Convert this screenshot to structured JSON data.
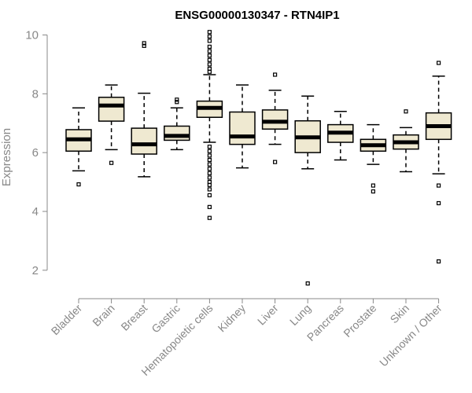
{
  "chart_data": {
    "type": "box",
    "title": "ENSG00000130347 - RTN4IP1",
    "xlabel": "",
    "ylabel": "Expression",
    "ylim": [
      1.3,
      10.2
    ],
    "yticks": [
      2,
      4,
      6,
      8,
      10
    ],
    "box_fill": "#efe9d1",
    "categories": [
      "Bladder",
      "Brain",
      "Breast",
      "Gastric",
      "Hematopoietic cells",
      "Kidney",
      "Liver",
      "Lung",
      "Pancreas",
      "Prostate",
      "Skin",
      "Unknown / Other"
    ],
    "boxes": [
      {
        "whisker_low": 5.38,
        "q1": 6.05,
        "median": 6.45,
        "q3": 6.78,
        "whisker_high": 7.52,
        "outliers": [
          4.92
        ]
      },
      {
        "whisker_low": 6.1,
        "q1": 7.07,
        "median": 7.6,
        "q3": 7.88,
        "whisker_high": 8.3,
        "outliers": [
          5.65
        ]
      },
      {
        "whisker_low": 5.18,
        "q1": 5.95,
        "median": 6.28,
        "q3": 6.83,
        "whisker_high": 8.02,
        "outliers": [
          9.63,
          9.72
        ]
      },
      {
        "whisker_low": 6.1,
        "q1": 6.42,
        "median": 6.57,
        "q3": 6.9,
        "whisker_high": 7.52,
        "outliers": [
          7.72,
          7.8
        ]
      },
      {
        "whisker_low": 6.35,
        "q1": 7.2,
        "median": 7.52,
        "q3": 7.75,
        "whisker_high": 8.65,
        "outliers": [
          10.1,
          9.95,
          9.8,
          9.6,
          9.45,
          9.3,
          9.15,
          9.0,
          8.85,
          8.75,
          6.2,
          6.05,
          5.9,
          5.75,
          5.6,
          5.45,
          5.3,
          5.15,
          5.0,
          4.9,
          4.75,
          4.55,
          4.15,
          3.78
        ]
      },
      {
        "whisker_low": 5.48,
        "q1": 6.28,
        "median": 6.55,
        "q3": 7.38,
        "whisker_high": 8.3,
        "outliers": []
      },
      {
        "whisker_low": 6.28,
        "q1": 6.8,
        "median": 7.05,
        "q3": 7.45,
        "whisker_high": 8.12,
        "outliers": [
          8.65,
          5.68
        ]
      },
      {
        "whisker_low": 5.45,
        "q1": 6.0,
        "median": 6.52,
        "q3": 7.08,
        "whisker_high": 7.92,
        "outliers": [
          1.55
        ]
      },
      {
        "whisker_low": 5.75,
        "q1": 6.35,
        "median": 6.68,
        "q3": 6.95,
        "whisker_high": 7.4,
        "outliers": []
      },
      {
        "whisker_low": 5.6,
        "q1": 6.05,
        "median": 6.25,
        "q3": 6.45,
        "whisker_high": 6.95,
        "outliers": [
          4.88,
          4.68
        ]
      },
      {
        "whisker_low": 5.35,
        "q1": 6.12,
        "median": 6.35,
        "q3": 6.6,
        "whisker_high": 6.85,
        "outliers": [
          7.4
        ]
      },
      {
        "whisker_low": 5.28,
        "q1": 6.45,
        "median": 6.9,
        "q3": 7.35,
        "whisker_high": 8.6,
        "outliers": [
          9.05,
          4.88,
          4.28,
          2.3
        ]
      }
    ]
  }
}
